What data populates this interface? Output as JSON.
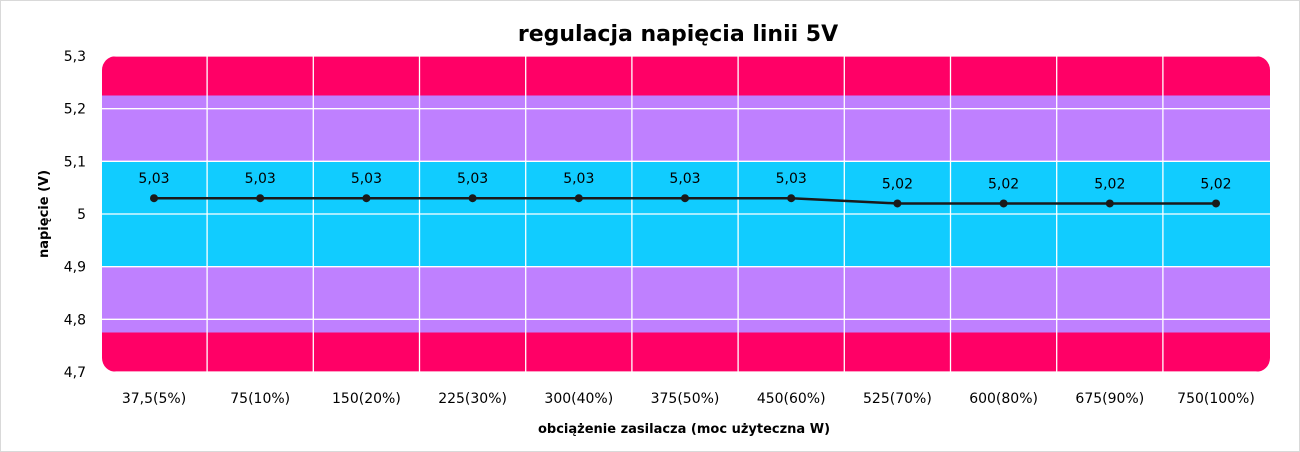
{
  "chart_data": {
    "type": "line",
    "title": "regulacja napięcia linii 5V",
    "xlabel": "obciążenie zasilacza (moc użyteczna W)",
    "ylabel": "napięcie (V)",
    "categories": [
      "37,5(5%)",
      "75(10%)",
      "150(20%)",
      "225(30%)",
      "300(40%)",
      "375(50%)",
      "450(60%)",
      "525(70%)",
      "600(80%)",
      "675(90%)",
      "750(100%)"
    ],
    "series": [
      {
        "values": [
          5.03,
          5.03,
          5.03,
          5.03,
          5.03,
          5.03,
          5.03,
          5.02,
          5.02,
          5.02,
          5.02
        ],
        "data_labels": [
          "5,03",
          "5,03",
          "5,03",
          "5,03",
          "5,03",
          "5,03",
          "5,03",
          "5,02",
          "5,02",
          "5,02",
          "5,02"
        ],
        "color": "#1a1a1a"
      }
    ],
    "ylim": [
      4.7,
      5.3
    ],
    "yticks": [
      4.7,
      4.8,
      4.9,
      5.0,
      5.1,
      5.2,
      5.3
    ],
    "ytick_labels": [
      "4,7",
      "4,8",
      "4,9",
      "5",
      "5,1",
      "5,2",
      "5,3"
    ],
    "grid": true,
    "legend": "none",
    "bands": [
      {
        "from": 4.7,
        "to": 4.775,
        "color": "#ff0066"
      },
      {
        "from": 4.775,
        "to": 4.9,
        "color": "#bf80ff"
      },
      {
        "from": 4.9,
        "to": 5.1,
        "color": "#11ccff"
      },
      {
        "from": 5.1,
        "to": 5.225,
        "color": "#bf80ff"
      },
      {
        "from": 5.225,
        "to": 5.3,
        "color": "#ff0066"
      }
    ],
    "grid_color": "#ffffff"
  }
}
